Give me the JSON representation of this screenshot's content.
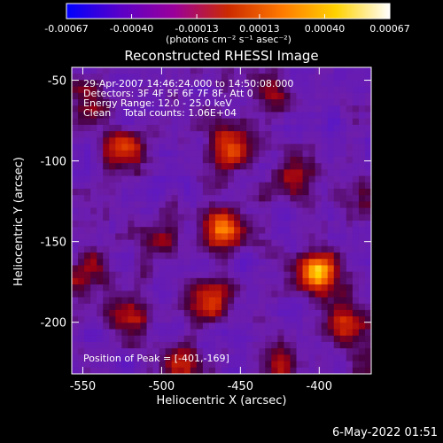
{
  "chart_data": {
    "type": "heatmap",
    "title": "Reconstructed RHESSI Image",
    "xlabel": "Heliocentric X (arcsec)",
    "ylabel": "Heliocentric Y (arcsec)",
    "xlim": [
      -557,
      -367
    ],
    "ylim": [
      -232,
      -42
    ],
    "x_ticks": [
      -550,
      -500,
      -450,
      -400
    ],
    "y_ticks": [
      -50,
      -100,
      -150,
      -200
    ],
    "x_tick_labels": [
      "-550",
      "-500",
      "-450",
      "-400"
    ],
    "y_tick_labels": [
      "-50",
      "-100",
      "-150",
      "-200"
    ],
    "colorbar": {
      "ticks": [
        -0.00067,
        -0.0004,
        -0.00013,
        0.00013,
        0.0004,
        0.00067
      ],
      "tick_labels": [
        "-0.00067",
        "-0.00040",
        "-0.00013",
        "0.00013",
        "0.00040",
        "0.00067"
      ],
      "unit_label": "(photons cm⁻² s⁻¹ asec⁻²)",
      "colors": [
        "#0000ff",
        "#5a00c8",
        "#9a009a",
        "#cc2a00",
        "#ff7a00",
        "#ffd200",
        "#ffffff"
      ]
    },
    "annotations": {
      "time_range": "29-Apr-2007 14:46:24.000 to 14:50:08.000",
      "detectors": "Detectors: 3F 4F 5F 6F 7F 8F, Att 0",
      "energy_range": "Energy Range: 12.0 - 25.0 keV",
      "algorithm": "Clean    Total counts: 1.06E+04",
      "peak": "Position of Peak = [-401,-169]"
    },
    "sources": [
      {
        "x": -401,
        "y": -169,
        "peak": 0.00067
      },
      {
        "x": -461,
        "y": -142,
        "peak": 0.00058
      },
      {
        "x": -455,
        "y": -92,
        "peak": 0.0005
      },
      {
        "x": -470,
        "y": -186,
        "peak": 0.0004
      },
      {
        "x": -524,
        "y": -92,
        "peak": 0.00038
      },
      {
        "x": -520,
        "y": -196,
        "peak": 0.00036
      },
      {
        "x": -488,
        "y": -226,
        "peak": 0.00036
      },
      {
        "x": -386,
        "y": -201,
        "peak": 0.00034
      },
      {
        "x": -415,
        "y": -110,
        "peak": 0.00032
      },
      {
        "x": -372,
        "y": -118,
        "peak": 0.0003
      },
      {
        "x": -425,
        "y": -226,
        "peak": 0.0003
      },
      {
        "x": -548,
        "y": -168,
        "peak": 0.00026
      },
      {
        "x": -548,
        "y": -66,
        "peak": 0.00026
      },
      {
        "x": -432,
        "y": -56,
        "peak": 0.00022
      },
      {
        "x": -502,
        "y": -150,
        "peak": 0.00022
      },
      {
        "x": -370,
        "y": -222,
        "peak": 0.0002
      }
    ]
  },
  "footer_date": "6-May-2022 01:51"
}
